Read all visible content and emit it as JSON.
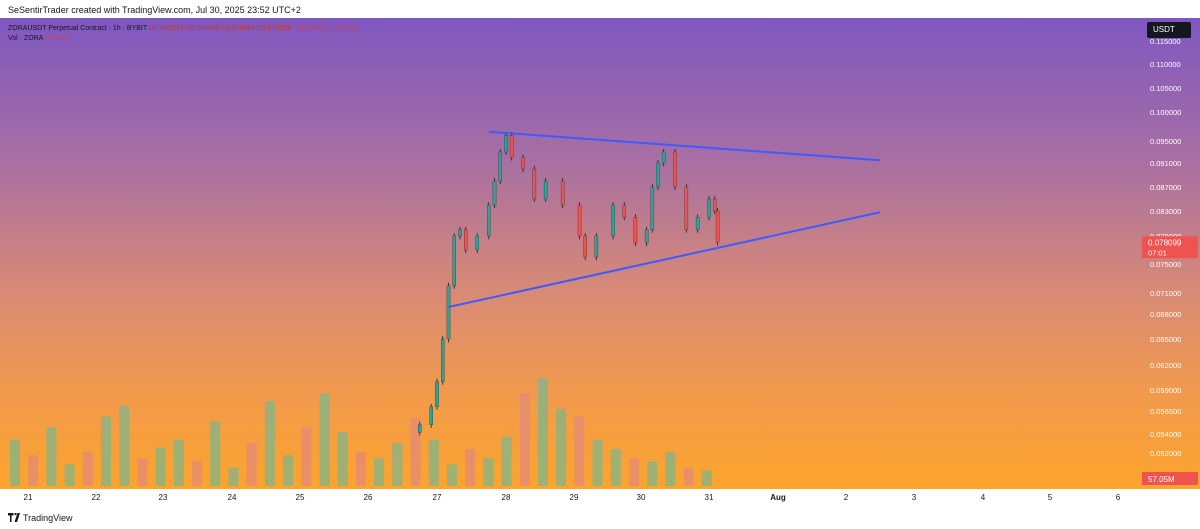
{
  "header": {
    "text": "SeSentirTrader created with TradingView.com, Jul 30, 2025 23:52 UTC+2"
  },
  "legend": {
    "symbol": "ZORAUSDT Perpetual Contract · 1h · BYBIT",
    "open": "O0.082541",
    "high": "H0.083068",
    "low": "L0.076894",
    "close": "C0.078099",
    "change": "−0.004442 (−5.38%)",
    "volume_label": "Vol · ZORA",
    "volume_value": "57.05M"
  },
  "currency": "USDT",
  "price_axis": {
    "ticks": [
      "0.115000",
      "0.110000",
      "0.105000",
      "0.100000",
      "0.095000",
      "0.091000",
      "0.087000",
      "0.083000",
      "0.079000",
      "0.075000",
      "0.071000",
      "0.068000",
      "0.065000",
      "0.062000",
      "0.059000",
      "0.056500",
      "0.054000",
      "0.052000",
      "0.050000"
    ],
    "last_price": "0.078099",
    "countdown": "07:01",
    "volume_badge": "57.05M"
  },
  "time_axis": {
    "labels": [
      "21",
      "22",
      "23",
      "24",
      "25",
      "26",
      "27",
      "28",
      "29",
      "30",
      "31",
      "Aug",
      "2",
      "3",
      "4",
      "5",
      "6"
    ]
  },
  "chart_data": {
    "type": "candlestick",
    "timeframe": "1h",
    "currency": "USDT",
    "ylim": [
      0.05,
      0.117
    ],
    "x_start": "2025-07-21",
    "x_end": "2025-08-06",
    "candles_approx": [
      {
        "t": "2025-07-26 18:00",
        "close": 0.055
      },
      {
        "t": "2025-07-26 22:00",
        "close": 0.057
      },
      {
        "t": "2025-07-27 00:00",
        "close": 0.06
      },
      {
        "t": "2025-07-27 02:00",
        "close": 0.065
      },
      {
        "t": "2025-07-27 04:00",
        "close": 0.072
      },
      {
        "t": "2025-07-27 06:00",
        "close": 0.079
      },
      {
        "t": "2025-07-27 08:00",
        "close": 0.08
      },
      {
        "t": "2025-07-27 10:00",
        "close": 0.077
      },
      {
        "t": "2025-07-27 14:00",
        "close": 0.079
      },
      {
        "t": "2025-07-27 18:00",
        "close": 0.084
      },
      {
        "t": "2025-07-27 20:00",
        "close": 0.088
      },
      {
        "t": "2025-07-27 22:00",
        "close": 0.093
      },
      {
        "t": "2025-07-28 00:00",
        "close": 0.096
      },
      {
        "t": "2025-07-28 02:00",
        "close": 0.092
      },
      {
        "t": "2025-07-28 06:00",
        "close": 0.09
      },
      {
        "t": "2025-07-28 10:00",
        "close": 0.085
      },
      {
        "t": "2025-07-28 14:00",
        "close": 0.088
      },
      {
        "t": "2025-07-28 20:00",
        "close": 0.084
      },
      {
        "t": "2025-07-29 02:00",
        "close": 0.079
      },
      {
        "t": "2025-07-29 04:00",
        "close": 0.076
      },
      {
        "t": "2025-07-29 08:00",
        "close": 0.079
      },
      {
        "t": "2025-07-29 14:00",
        "close": 0.084
      },
      {
        "t": "2025-07-29 18:00",
        "close": 0.082
      },
      {
        "t": "2025-07-29 22:00",
        "close": 0.078
      },
      {
        "t": "2025-07-30 02:00",
        "close": 0.08
      },
      {
        "t": "2025-07-30 04:00",
        "close": 0.087
      },
      {
        "t": "2025-07-30 06:00",
        "close": 0.091
      },
      {
        "t": "2025-07-30 08:00",
        "close": 0.093
      },
      {
        "t": "2025-07-30 12:00",
        "close": 0.087
      },
      {
        "t": "2025-07-30 16:00",
        "close": 0.08
      },
      {
        "t": "2025-07-30 20:00",
        "close": 0.082
      },
      {
        "t": "2025-07-31 00:00",
        "close": 0.085
      },
      {
        "t": "2025-07-31 02:00",
        "close": 0.083
      },
      {
        "t": "2025-07-31 03:00",
        "close": 0.0781
      }
    ],
    "volume_bars_approx": [
      30,
      20,
      38,
      14,
      22,
      45,
      52,
      18,
      25,
      30,
      16,
      42,
      12,
      28,
      55,
      20,
      38,
      60,
      35,
      22,
      18,
      28,
      44,
      30,
      14,
      24,
      18,
      32,
      60,
      70,
      50,
      45,
      30,
      24,
      18,
      16,
      22,
      12,
      10
    ],
    "trendlines": [
      {
        "from": {
          "t": "2025-07-27 18:00",
          "y": 0.0966
        },
        "to": {
          "t": "2025-08-02 12:00",
          "y": 0.0915
        },
        "color": "#3d5cff"
      },
      {
        "from": {
          "t": "2025-07-27 04:00",
          "y": 0.069
        },
        "to": {
          "t": "2025-08-02 12:00",
          "y": 0.0828
        },
        "color": "#3d5cff"
      }
    ],
    "colors": {
      "up": "#26a69a",
      "down": "#ef5350",
      "volume_up": "#7fb58a",
      "volume_down": "#e38a7a"
    }
  }
}
